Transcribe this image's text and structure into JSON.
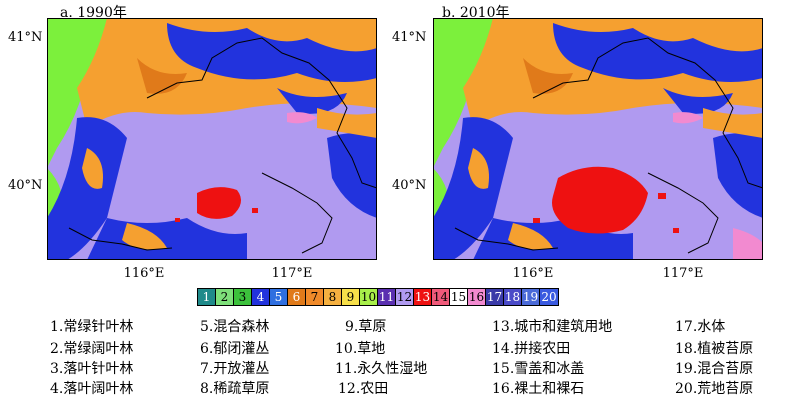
{
  "panels": [
    {
      "title": "a. 1990年",
      "lat_labels": [
        "41°N",
        "40°N"
      ],
      "lon_labels": [
        "116°E",
        "117°E"
      ]
    },
    {
      "title": "b. 2010年",
      "lat_labels": [
        "41°N",
        "40°N"
      ],
      "lon_labels": [
        "116°E",
        "117°E"
      ]
    }
  ],
  "colorbar": [
    {
      "n": "1",
      "color": "#1f8a8a"
    },
    {
      "n": "2",
      "color": "#7ee07a"
    },
    {
      "n": "3",
      "color": "#3cc13c"
    },
    {
      "n": "4",
      "color": "#2233dd"
    },
    {
      "n": "5",
      "color": "#2f6fe0"
    },
    {
      "n": "6",
      "color": "#e07a1a"
    },
    {
      "n": "7",
      "color": "#f08a2a"
    },
    {
      "n": "8",
      "color": "#f5b040"
    },
    {
      "n": "9",
      "color": "#f7e04a"
    },
    {
      "n": "10",
      "color": "#a8ef4a"
    },
    {
      "n": "11",
      "color": "#5a2fb0"
    },
    {
      "n": "12",
      "color": "#b09af0"
    },
    {
      "n": "13",
      "color": "#ee1111"
    },
    {
      "n": "14",
      "color": "#f05a7a"
    },
    {
      "n": "15",
      "color": "#ffffff"
    },
    {
      "n": "16",
      "color": "#f28ad0"
    },
    {
      "n": "17",
      "color": "#3a3aa8"
    },
    {
      "n": "18",
      "color": "#4a4ac8"
    },
    {
      "n": "19",
      "color": "#4a6ad8"
    },
    {
      "n": "20",
      "color": "#3a5ae0"
    }
  ],
  "legend": [
    "1.常绿针叶林",
    "2.常绿阔叶林",
    "3.落叶针叶林",
    "4.落叶阔叶林",
    "5.混合森林",
    "6.郁闭灌丛",
    "7.开放灌丛",
    "8.稀疏草原",
    "9.草原",
    "10.草地",
    "11.永久性湿地",
    "12.农田",
    "13.城市和建筑用地",
    "14.拼接农田",
    "15.雪盖和冰盖",
    "16.裸土和裸石",
    "17.水体",
    "18.植被苔原",
    "19.混合苔原",
    "20.荒地苔原"
  ],
  "colors": {
    "cropland": "#b09af0",
    "forest": "#2233dd",
    "shrub": "#f5a030",
    "grass": "#7cf03c",
    "urban": "#ee1111",
    "border": "#000000"
  }
}
